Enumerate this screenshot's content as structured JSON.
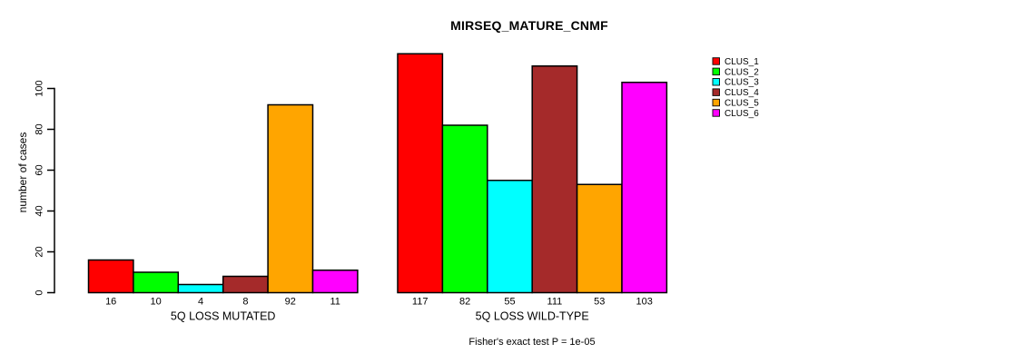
{
  "chart_data": {
    "type": "bar",
    "title": "MIRSEQ_MATURE_CNMF",
    "ylabel": "number of cases",
    "xlabel": "",
    "annotation": "Fisher's exact test P = 1e-05",
    "ylim": [
      0,
      117
    ],
    "yticks": [
      0,
      20,
      40,
      60,
      80,
      100
    ],
    "grid": false,
    "legend_position": "right",
    "categories": [
      "5Q LOSS MUTATED",
      "5Q LOSS WILD-TYPE"
    ],
    "series": [
      {
        "name": "CLUS_1",
        "color": "#FF0000",
        "values": [
          16,
          117
        ]
      },
      {
        "name": "CLUS_2",
        "color": "#00FF00",
        "values": [
          10,
          82
        ]
      },
      {
        "name": "CLUS_3",
        "color": "#00FFFF",
        "values": [
          4,
          55
        ]
      },
      {
        "name": "CLUS_4",
        "color": "#A52A2A",
        "values": [
          8,
          111
        ]
      },
      {
        "name": "CLUS_5",
        "color": "#FFA500",
        "values": [
          92,
          53
        ]
      },
      {
        "name": "CLUS_6",
        "color": "#FF00FF",
        "values": [
          11,
          103
        ]
      }
    ],
    "bar_value_labels": true,
    "axis_color": "#000000"
  }
}
